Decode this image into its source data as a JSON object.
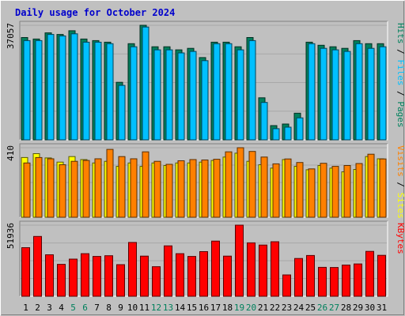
{
  "title": "Daily usage for October 2024",
  "colors": {
    "background": "#C0C0C0",
    "plot_background": "#C0C0C0",
    "title": "#0000CC",
    "pages": "#00805C",
    "files": "#00C0FF",
    "hits": "#00805C",
    "visits": "#FFFF00",
    "sites": "#FF8000",
    "kbytes": "#FF0000",
    "weekday_label": "#000000",
    "weekend_label": "#00805C"
  },
  "chart_data": [
    {
      "type": "bar",
      "name": "hits-files-pages",
      "max_label": "37057",
      "legend": [
        "Pages",
        "Files",
        "Hits"
      ],
      "categories": [
        "1",
        "2",
        "3",
        "4",
        "5",
        "6",
        "7",
        "8",
        "9",
        "10",
        "11",
        "12",
        "13",
        "14",
        "15",
        "16",
        "17",
        "18",
        "19",
        "20",
        "21",
        "22",
        "23",
        "24",
        "25",
        "26",
        "27",
        "28",
        "29",
        "30",
        "31"
      ],
      "weekend_days": [
        "5",
        "6",
        "12",
        "13",
        "19",
        "20",
        "26",
        "27"
      ],
      "ylim": [
        0,
        37057
      ],
      "series": [
        {
          "name": "Hits",
          "values": [
            33100,
            32600,
            34600,
            34100,
            35300,
            32600,
            32100,
            31600,
            18600,
            31100,
            37057,
            30100,
            30100,
            29100,
            29600,
            26600,
            31600,
            31600,
            30100,
            33100,
            13600,
            4600,
            5100,
            8600,
            31600,
            30600,
            30100,
            29600,
            32100,
            31100,
            31100
          ]
        },
        {
          "name": "Files",
          "values": [
            32100,
            32100,
            34100,
            33600,
            34300,
            31600,
            31600,
            31100,
            17600,
            30100,
            36500,
            29100,
            29100,
            28100,
            28600,
            25600,
            31100,
            31100,
            29100,
            32100,
            12100,
            3600,
            4100,
            7100,
            31100,
            29600,
            29100,
            28600,
            31100,
            29600,
            30100
          ]
        }
      ]
    },
    {
      "type": "bar",
      "name": "visits-sites",
      "max_label": "410",
      "legend": [
        "Sites",
        "Visits"
      ],
      "categories": [
        "1",
        "2",
        "3",
        "4",
        "5",
        "6",
        "7",
        "8",
        "9",
        "10",
        "11",
        "12",
        "13",
        "14",
        "15",
        "16",
        "17",
        "18",
        "19",
        "20",
        "21",
        "22",
        "23",
        "24",
        "25",
        "26",
        "27",
        "28",
        "29",
        "30",
        "31"
      ],
      "ylim": [
        0,
        410
      ],
      "series": [
        {
          "name": "Visits",
          "values": [
            352,
            375,
            350,
            325,
            358,
            340,
            320,
            330,
            300,
            320,
            300,
            320,
            305,
            320,
            320,
            325,
            335,
            355,
            378,
            330,
            310,
            290,
            340,
            300,
            280,
            305,
            290,
            268,
            282,
            358,
            345
          ]
        },
        {
          "name": "Sites",
          "values": [
            320,
            352,
            345,
            310,
            330,
            335,
            345,
            400,
            358,
            345,
            386,
            330,
            312,
            333,
            340,
            338,
            342,
            386,
            410,
            388,
            355,
            315,
            344,
            323,
            285,
            318,
            300,
            305,
            317,
            372,
            344
          ]
        }
      ]
    },
    {
      "type": "bar",
      "name": "kbytes",
      "max_label": "51936",
      "legend": [
        "KBytes"
      ],
      "categories": [
        "1",
        "2",
        "3",
        "4",
        "5",
        "6",
        "7",
        "8",
        "9",
        "10",
        "11",
        "12",
        "13",
        "14",
        "15",
        "16",
        "17",
        "18",
        "19",
        "20",
        "21",
        "22",
        "23",
        "24",
        "25",
        "26",
        "27",
        "28",
        "29",
        "30",
        "31"
      ],
      "ylim": [
        0,
        51936
      ],
      "series": [
        {
          "name": "KBytes",
          "values": [
            35500,
            43700,
            30300,
            23300,
            27100,
            31100,
            29100,
            29600,
            23100,
            39300,
            29300,
            21600,
            36800,
            31100,
            29100,
            32600,
            40300,
            29300,
            51936,
            39000,
            37400,
            39800,
            15600,
            27600,
            29800,
            21100,
            21000,
            22800,
            23600,
            32800,
            29900
          ]
        }
      ]
    }
  ]
}
